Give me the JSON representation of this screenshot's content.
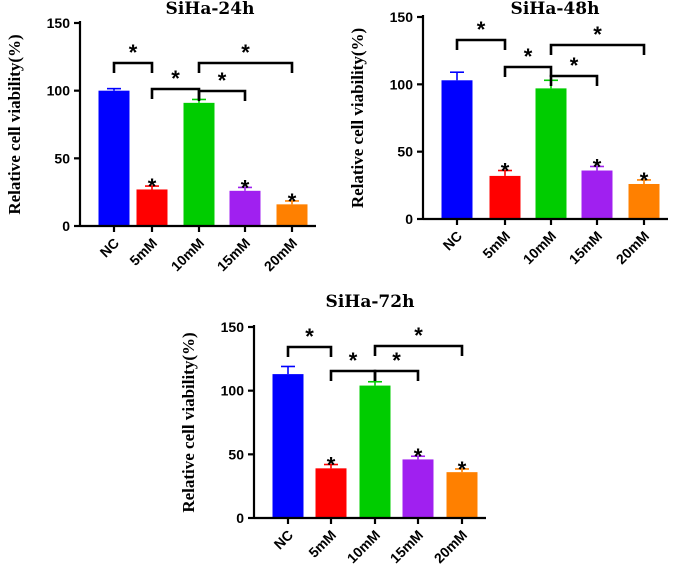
{
  "chart_data": [
    {
      "type": "bar",
      "title": "SiHa-24h",
      "ylabel": "Relative cell viability(%)",
      "xlabel": "",
      "ylim": [
        0,
        150
      ],
      "yticks": [
        0,
        50,
        100,
        150
      ],
      "categories": [
        "NC",
        "5mM",
        "10mM",
        "15mM",
        "20mM"
      ],
      "values": [
        100,
        27,
        91,
        26,
        16
      ],
      "errors": [
        1.5,
        2.5,
        2.5,
        2.5,
        2.5
      ],
      "colors": [
        "#0000ff",
        "#ff0000",
        "#00cc00",
        "#a020f0",
        "#ff8000"
      ],
      "bar_marks": [
        "",
        "*",
        "",
        "*",
        "*"
      ],
      "brackets": [
        {
          "from": "NC",
          "to": "5mM",
          "mark": "*"
        },
        {
          "from": "5mM",
          "to": "10mM",
          "mark": "*"
        },
        {
          "from": "10mM",
          "to": "15mM",
          "mark": "*"
        },
        {
          "from": "10mM",
          "to": "20mM",
          "mark": "*"
        }
      ]
    },
    {
      "type": "bar",
      "title": "SiHa-48h",
      "ylabel": "Relative cell viability(%)",
      "xlabel": "",
      "ylim": [
        0,
        150
      ],
      "yticks": [
        0,
        50,
        100,
        150
      ],
      "categories": [
        "NC",
        "5mM",
        "10mM",
        "15mM",
        "20mM"
      ],
      "values": [
        103,
        32,
        97,
        36,
        26
      ],
      "errors": [
        6,
        4,
        6,
        3,
        3
      ],
      "colors": [
        "#0000ff",
        "#ff0000",
        "#00cc00",
        "#a020f0",
        "#ff8000"
      ],
      "bar_marks": [
        "",
        "*",
        "",
        "*",
        "*"
      ],
      "brackets": [
        {
          "from": "NC",
          "to": "5mM",
          "mark": "*"
        },
        {
          "from": "5mM",
          "to": "10mM",
          "mark": "*"
        },
        {
          "from": "10mM",
          "to": "15mM",
          "mark": "*"
        },
        {
          "from": "10mM",
          "to": "20mM",
          "mark": "*"
        }
      ]
    },
    {
      "type": "bar",
      "title": "SiHa-72h",
      "ylabel": "Relative cell viability(%)",
      "xlabel": "",
      "ylim": [
        0,
        150
      ],
      "yticks": [
        0,
        50,
        100,
        150
      ],
      "categories": [
        "NC",
        "5mM",
        "10mM",
        "15mM",
        "20mM"
      ],
      "values": [
        113,
        39,
        104,
        46,
        36
      ],
      "errors": [
        6,
        3,
        3,
        2.5,
        2.5
      ],
      "colors": [
        "#0000ff",
        "#ff0000",
        "#00cc00",
        "#a020f0",
        "#ff8000"
      ],
      "bar_marks": [
        "",
        "*",
        "",
        "*",
        "*"
      ],
      "brackets": [
        {
          "from": "NC",
          "to": "5mM",
          "mark": "*"
        },
        {
          "from": "5mM",
          "to": "10mM",
          "mark": "*"
        },
        {
          "from": "10mM",
          "to": "15mM",
          "mark": "*"
        },
        {
          "from": "10mM",
          "to": "20mM",
          "mark": "*"
        }
      ]
    }
  ]
}
